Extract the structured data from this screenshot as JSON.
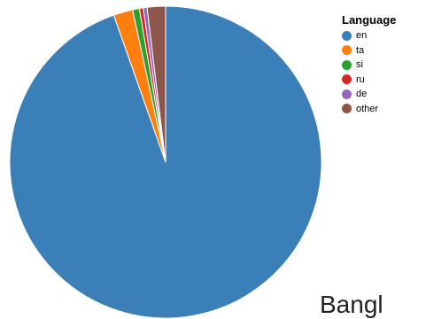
{
  "chart_data": {
    "type": "pie",
    "legend_title": "Language",
    "legend_position": "top-right",
    "slices": [
      {
        "label": "en",
        "value": 94.6,
        "color": "#3b7fb9"
      },
      {
        "label": "ta",
        "value": 2.0,
        "color": "#ff7f0e"
      },
      {
        "label": "si",
        "value": 0.7,
        "color": "#2ca02c"
      },
      {
        "label": "ru",
        "value": 0.4,
        "color": "#d62728"
      },
      {
        "label": "de",
        "value": 0.4,
        "color": "#9467bd"
      },
      {
        "label": "other",
        "value": 1.9,
        "color": "#8c564b"
      }
    ]
  },
  "caption": "Bangl"
}
